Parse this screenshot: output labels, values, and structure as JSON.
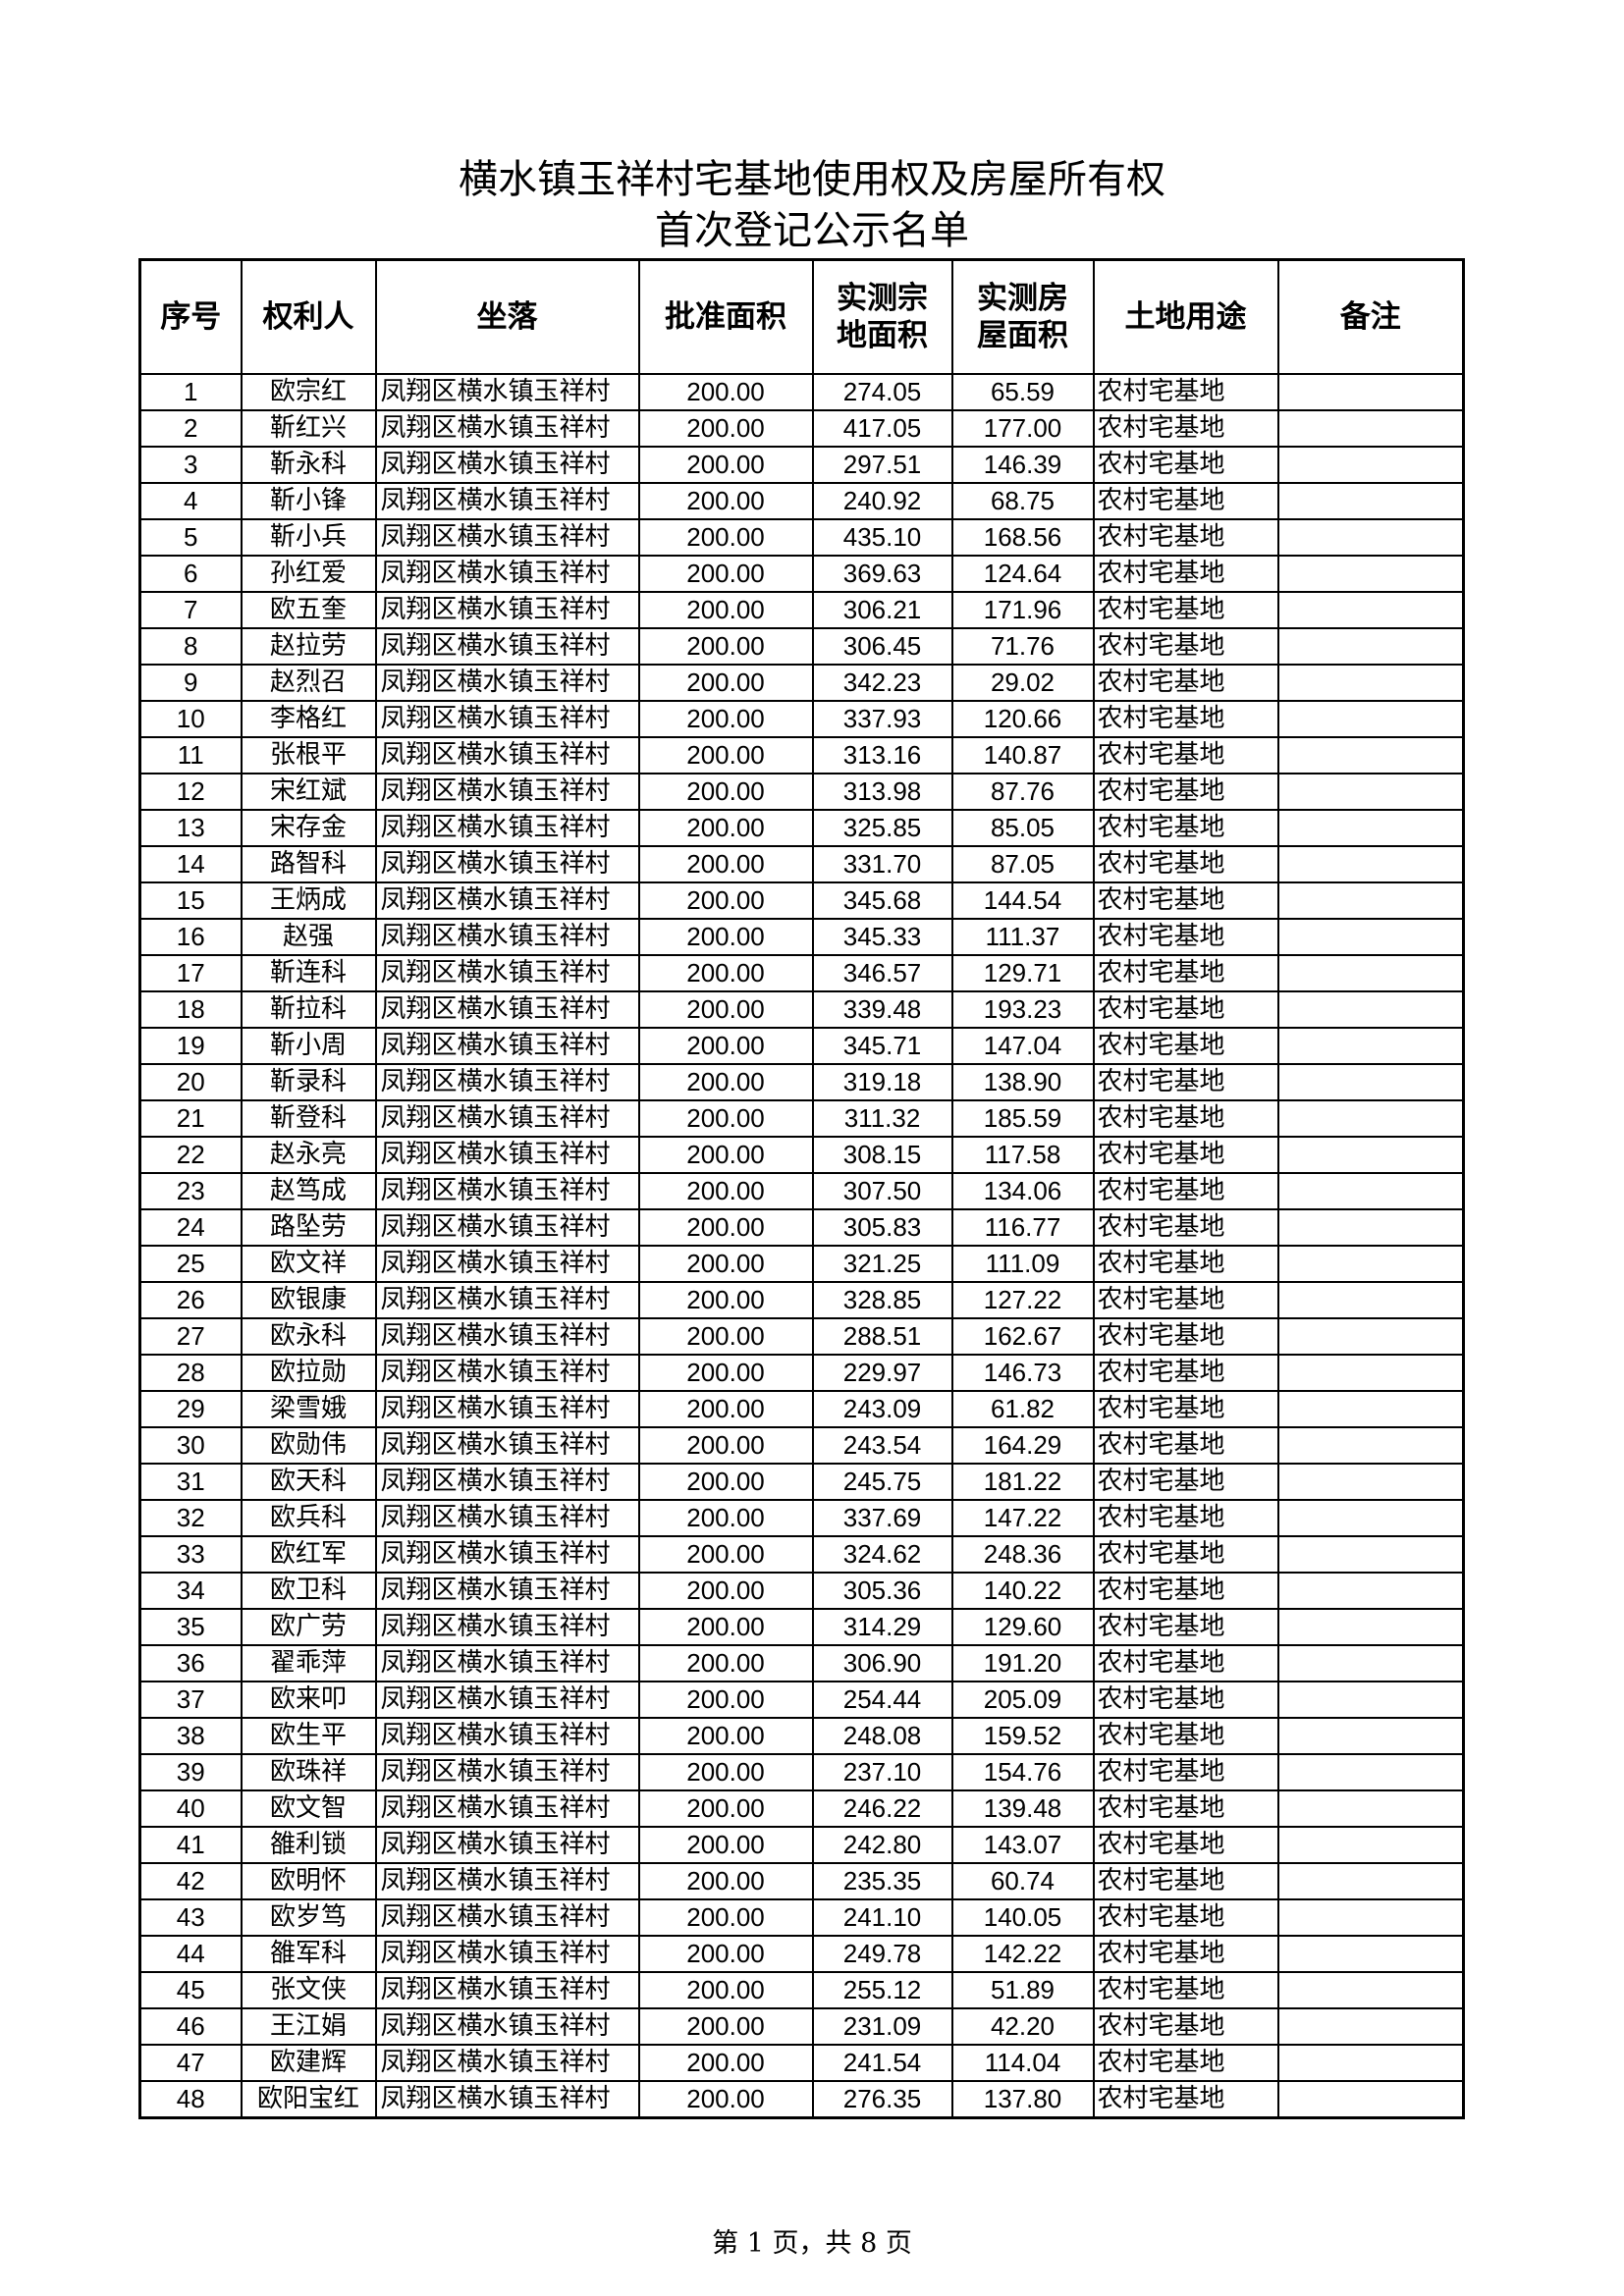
{
  "title_line1": "横水镇玉祥村宅基地使用权及房屋所有权",
  "title_line2": "首次登记公示名单",
  "headers": [
    "序号",
    "权利人",
    "坐落",
    "批准面积",
    "实测宗地面积",
    "实测房屋面积",
    "土地用途",
    "备注"
  ],
  "rows": [
    [
      "1",
      "欧宗红",
      "凤翔区横水镇玉祥村",
      "200.00",
      "274.05",
      "65.59",
      "农村宅基地",
      ""
    ],
    [
      "2",
      "靳红兴",
      "凤翔区横水镇玉祥村",
      "200.00",
      "417.05",
      "177.00",
      "农村宅基地",
      ""
    ],
    [
      "3",
      "靳永科",
      "凤翔区横水镇玉祥村",
      "200.00",
      "297.51",
      "146.39",
      "农村宅基地",
      ""
    ],
    [
      "4",
      "靳小锋",
      "凤翔区横水镇玉祥村",
      "200.00",
      "240.92",
      "68.75",
      "农村宅基地",
      ""
    ],
    [
      "5",
      "靳小兵",
      "凤翔区横水镇玉祥村",
      "200.00",
      "435.10",
      "168.56",
      "农村宅基地",
      ""
    ],
    [
      "6",
      "孙红爱",
      "凤翔区横水镇玉祥村",
      "200.00",
      "369.63",
      "124.64",
      "农村宅基地",
      ""
    ],
    [
      "7",
      "欧五奎",
      "凤翔区横水镇玉祥村",
      "200.00",
      "306.21",
      "171.96",
      "农村宅基地",
      ""
    ],
    [
      "8",
      "赵拉劳",
      "凤翔区横水镇玉祥村",
      "200.00",
      "306.45",
      "71.76",
      "农村宅基地",
      ""
    ],
    [
      "9",
      "赵烈召",
      "凤翔区横水镇玉祥村",
      "200.00",
      "342.23",
      "29.02",
      "农村宅基地",
      ""
    ],
    [
      "10",
      "李格红",
      "凤翔区横水镇玉祥村",
      "200.00",
      "337.93",
      "120.66",
      "农村宅基地",
      ""
    ],
    [
      "11",
      "张根平",
      "凤翔区横水镇玉祥村",
      "200.00",
      "313.16",
      "140.87",
      "农村宅基地",
      ""
    ],
    [
      "12",
      "宋红斌",
      "凤翔区横水镇玉祥村",
      "200.00",
      "313.98",
      "87.76",
      "农村宅基地",
      ""
    ],
    [
      "13",
      "宋存金",
      "凤翔区横水镇玉祥村",
      "200.00",
      "325.85",
      "85.05",
      "农村宅基地",
      ""
    ],
    [
      "14",
      "路智科",
      "凤翔区横水镇玉祥村",
      "200.00",
      "331.70",
      "87.05",
      "农村宅基地",
      ""
    ],
    [
      "15",
      "王炳成",
      "凤翔区横水镇玉祥村",
      "200.00",
      "345.68",
      "144.54",
      "农村宅基地",
      ""
    ],
    [
      "16",
      "赵强",
      "凤翔区横水镇玉祥村",
      "200.00",
      "345.33",
      "111.37",
      "农村宅基地",
      ""
    ],
    [
      "17",
      "靳连科",
      "凤翔区横水镇玉祥村",
      "200.00",
      "346.57",
      "129.71",
      "农村宅基地",
      ""
    ],
    [
      "18",
      "靳拉科",
      "凤翔区横水镇玉祥村",
      "200.00",
      "339.48",
      "193.23",
      "农村宅基地",
      ""
    ],
    [
      "19",
      "靳小周",
      "凤翔区横水镇玉祥村",
      "200.00",
      "345.71",
      "147.04",
      "农村宅基地",
      ""
    ],
    [
      "20",
      "靳录科",
      "凤翔区横水镇玉祥村",
      "200.00",
      "319.18",
      "138.90",
      "农村宅基地",
      ""
    ],
    [
      "21",
      "靳登科",
      "凤翔区横水镇玉祥村",
      "200.00",
      "311.32",
      "185.59",
      "农村宅基地",
      ""
    ],
    [
      "22",
      "赵永亮",
      "凤翔区横水镇玉祥村",
      "200.00",
      "308.15",
      "117.58",
      "农村宅基地",
      ""
    ],
    [
      "23",
      "赵笃成",
      "凤翔区横水镇玉祥村",
      "200.00",
      "307.50",
      "134.06",
      "农村宅基地",
      ""
    ],
    [
      "24",
      "路坠劳",
      "凤翔区横水镇玉祥村",
      "200.00",
      "305.83",
      "116.77",
      "农村宅基地",
      ""
    ],
    [
      "25",
      "欧文祥",
      "凤翔区横水镇玉祥村",
      "200.00",
      "321.25",
      "111.09",
      "农村宅基地",
      ""
    ],
    [
      "26",
      "欧银康",
      "凤翔区横水镇玉祥村",
      "200.00",
      "328.85",
      "127.22",
      "农村宅基地",
      ""
    ],
    [
      "27",
      "欧永科",
      "凤翔区横水镇玉祥村",
      "200.00",
      "288.51",
      "162.67",
      "农村宅基地",
      ""
    ],
    [
      "28",
      "欧拉勋",
      "凤翔区横水镇玉祥村",
      "200.00",
      "229.97",
      "146.73",
      "农村宅基地",
      ""
    ],
    [
      "29",
      "梁雪娥",
      "凤翔区横水镇玉祥村",
      "200.00",
      "243.09",
      "61.82",
      "农村宅基地",
      ""
    ],
    [
      "30",
      "欧勋伟",
      "凤翔区横水镇玉祥村",
      "200.00",
      "243.54",
      "164.29",
      "农村宅基地",
      ""
    ],
    [
      "31",
      "欧天科",
      "凤翔区横水镇玉祥村",
      "200.00",
      "245.75",
      "181.22",
      "农村宅基地",
      ""
    ],
    [
      "32",
      "欧兵科",
      "凤翔区横水镇玉祥村",
      "200.00",
      "337.69",
      "147.22",
      "农村宅基地",
      ""
    ],
    [
      "33",
      "欧红军",
      "凤翔区横水镇玉祥村",
      "200.00",
      "324.62",
      "248.36",
      "农村宅基地",
      ""
    ],
    [
      "34",
      "欧卫科",
      "凤翔区横水镇玉祥村",
      "200.00",
      "305.36",
      "140.22",
      "农村宅基地",
      ""
    ],
    [
      "35",
      "欧广劳",
      "凤翔区横水镇玉祥村",
      "200.00",
      "314.29",
      "129.60",
      "农村宅基地",
      ""
    ],
    [
      "36",
      "翟乖萍",
      "凤翔区横水镇玉祥村",
      "200.00",
      "306.90",
      "191.20",
      "农村宅基地",
      ""
    ],
    [
      "37",
      "欧来叩",
      "凤翔区横水镇玉祥村",
      "200.00",
      "254.44",
      "205.09",
      "农村宅基地",
      ""
    ],
    [
      "38",
      "欧生平",
      "凤翔区横水镇玉祥村",
      "200.00",
      "248.08",
      "159.52",
      "农村宅基地",
      ""
    ],
    [
      "39",
      "欧珠祥",
      "凤翔区横水镇玉祥村",
      "200.00",
      "237.10",
      "154.76",
      "农村宅基地",
      ""
    ],
    [
      "40",
      "欧文智",
      "凤翔区横水镇玉祥村",
      "200.00",
      "246.22",
      "139.48",
      "农村宅基地",
      ""
    ],
    [
      "41",
      "雒利锁",
      "凤翔区横水镇玉祥村",
      "200.00",
      "242.80",
      "143.07",
      "农村宅基地",
      ""
    ],
    [
      "42",
      "欧明怀",
      "凤翔区横水镇玉祥村",
      "200.00",
      "235.35",
      "60.74",
      "农村宅基地",
      ""
    ],
    [
      "43",
      "欧岁笃",
      "凤翔区横水镇玉祥村",
      "200.00",
      "241.10",
      "140.05",
      "农村宅基地",
      ""
    ],
    [
      "44",
      "雒军科",
      "凤翔区横水镇玉祥村",
      "200.00",
      "249.78",
      "142.22",
      "农村宅基地",
      ""
    ],
    [
      "45",
      "张文侠",
      "凤翔区横水镇玉祥村",
      "200.00",
      "255.12",
      "51.89",
      "农村宅基地",
      ""
    ],
    [
      "46",
      "王江娟",
      "凤翔区横水镇玉祥村",
      "200.00",
      "231.09",
      "42.20",
      "农村宅基地",
      ""
    ],
    [
      "47",
      "欧建辉",
      "凤翔区横水镇玉祥村",
      "200.00",
      "241.54",
      "114.04",
      "农村宅基地",
      ""
    ],
    [
      "48",
      "欧阳宝红",
      "凤翔区横水镇玉祥村",
      "200.00",
      "276.35",
      "137.80",
      "农村宅基地",
      ""
    ]
  ],
  "footer": "第 1 页，共 8 页"
}
